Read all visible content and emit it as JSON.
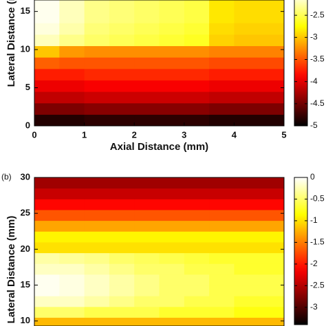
{
  "chart_data": [
    {
      "type": "heatmap",
      "colormap": "hot",
      "x_label": "Axial Distance (mm)",
      "y_label": "Lateral Distance (mm)",
      "x": [
        0,
        0.5,
        1,
        1.5,
        2,
        2.5,
        3,
        3.5,
        4,
        4.5,
        5
      ],
      "y": [
        0,
        1.5,
        3,
        4.5,
        6,
        7.5,
        9,
        10.5,
        12,
        13.5,
        15,
        16.5
      ],
      "z": [
        [
          -4.85,
          -4.85,
          -4.8,
          -4.8,
          -4.8,
          -4.8,
          -4.8,
          -4.85,
          -4.85,
          -4.85
        ],
        [
          -4.45,
          -4.45,
          -4.4,
          -4.4,
          -4.4,
          -4.4,
          -4.4,
          -4.45,
          -4.45,
          -4.45
        ],
        [
          -4.15,
          -4.15,
          -4.1,
          -4.1,
          -4.1,
          -4.1,
          -4.1,
          -4.15,
          -4.15,
          -4.15
        ],
        [
          -3.95,
          -3.95,
          -3.9,
          -3.9,
          -3.9,
          -3.9,
          -3.9,
          -3.95,
          -3.95,
          -3.95
        ],
        [
          -3.75,
          -3.75,
          -3.7,
          -3.7,
          -3.7,
          -3.7,
          -3.7,
          -3.75,
          -3.75,
          -3.75
        ],
        [
          -3.45,
          -3.5,
          -3.5,
          -3.5,
          -3.5,
          -3.5,
          -3.5,
          -3.55,
          -3.55,
          -3.55
        ],
        [
          -3.0,
          -3.2,
          -3.25,
          -3.25,
          -3.25,
          -3.25,
          -3.25,
          -3.3,
          -3.3,
          -3.3
        ],
        [
          -2.2,
          -2.35,
          -2.45,
          -2.5,
          -2.55,
          -2.6,
          -2.65,
          -2.95,
          -3.0,
          -3.0
        ],
        [
          -2.1,
          -2.25,
          -2.4,
          -2.45,
          -2.5,
          -2.55,
          -2.6,
          -2.9,
          -2.95,
          -2.95
        ],
        [
          -2.05,
          -2.2,
          -2.35,
          -2.4,
          -2.45,
          -2.5,
          -2.55,
          -2.85,
          -2.9,
          -2.9
        ],
        [
          -2.05,
          -2.2,
          -2.35,
          -2.4,
          -2.45,
          -2.5,
          -2.55,
          -2.85,
          -2.9,
          -2.9
        ]
      ],
      "xlim": [
        0,
        5
      ],
      "xticks": [
        0,
        1,
        2,
        3,
        4,
        5
      ],
      "ylim": [
        0,
        16.5
      ],
      "yticks": [
        0,
        5,
        10,
        15
      ],
      "clim": [
        -5,
        -2
      ],
      "cticks": [
        -2.5,
        -3,
        -3.5,
        -4,
        -4.5,
        -5
      ]
    },
    {
      "type": "heatmap",
      "colormap": "hot",
      "panel_label": "(b)",
      "y_label": "Lateral Distance (mm)",
      "x": [
        0,
        0.5,
        1,
        1.5,
        2,
        2.5,
        3,
        3.5,
        4,
        4.5,
        5
      ],
      "y": [
        9.3,
        10.5,
        12,
        13.5,
        15,
        16.5,
        18,
        19.5,
        21,
        22.5,
        24,
        25.5,
        27,
        28.5,
        30
      ],
      "z": [
        [
          -1.2,
          -1.2,
          -1.2,
          -1.2,
          -1.2,
          -1.2,
          -1.2,
          -1.2,
          -1.2,
          -1.2
        ],
        [
          -0.5,
          -0.5,
          -0.6,
          -0.6,
          -0.6,
          -0.7,
          -0.7,
          -0.7,
          -0.8,
          -0.8
        ],
        [
          -0.2,
          -0.2,
          -0.3,
          -0.4,
          -0.5,
          -0.5,
          -0.6,
          -0.6,
          -0.7,
          -0.7
        ],
        [
          -0.05,
          -0.1,
          -0.2,
          -0.3,
          -0.4,
          -0.5,
          -0.5,
          -0.6,
          -0.6,
          -0.6
        ],
        [
          -0.05,
          -0.1,
          -0.2,
          -0.3,
          -0.4,
          -0.5,
          -0.5,
          -0.6,
          -0.6,
          -0.6
        ],
        [
          -0.2,
          -0.2,
          -0.3,
          -0.4,
          -0.5,
          -0.5,
          -0.6,
          -0.6,
          -0.7,
          -0.7
        ],
        [
          -0.3,
          -0.35,
          -0.4,
          -0.5,
          -0.55,
          -0.6,
          -0.65,
          -0.7,
          -0.7,
          -0.7
        ],
        [
          -1.0,
          -1.0,
          -1.0,
          -1.0,
          -1.0,
          -1.0,
          -1.0,
          -1.0,
          -1.0,
          -1.0
        ],
        [
          -0.9,
          -0.9,
          -0.9,
          -0.9,
          -0.9,
          -0.9,
          -0.9,
          -0.9,
          -0.9,
          -0.9
        ],
        [
          -1.3,
          -1.3,
          -1.3,
          -1.3,
          -1.3,
          -1.3,
          -1.3,
          -1.3,
          -1.3,
          -1.3
        ],
        [
          -1.7,
          -1.7,
          -1.7,
          -1.7,
          -1.7,
          -1.7,
          -1.7,
          -1.7,
          -1.7,
          -1.7
        ],
        [
          -2.1,
          -2.1,
          -2.1,
          -2.1,
          -2.1,
          -2.1,
          -2.1,
          -2.1,
          -2.1,
          -2.1
        ],
        [
          -2.4,
          -2.4,
          -2.4,
          -2.4,
          -2.4,
          -2.4,
          -2.4,
          -2.4,
          -2.4,
          -2.4
        ],
        [
          -2.6,
          -2.6,
          -2.6,
          -2.6,
          -2.6,
          -2.6,
          -2.6,
          -2.6,
          -2.6,
          -2.6
        ]
      ],
      "xlim": [
        0,
        5
      ],
      "ylim": [
        9.3,
        30
      ],
      "yticks": [
        10,
        15,
        20,
        25,
        30
      ],
      "clim": [
        -3.4,
        0
      ],
      "cticks": [
        0,
        -0.5,
        -1,
        -1.5,
        -2,
        -2.5,
        -3
      ]
    }
  ]
}
